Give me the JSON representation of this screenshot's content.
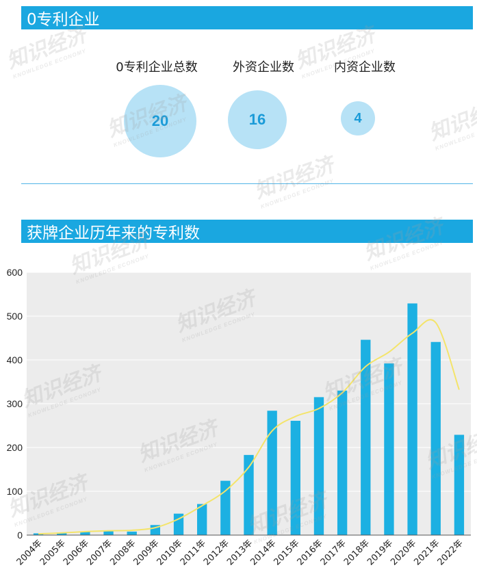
{
  "section1": {
    "title": "0专利企业",
    "labels": [
      "0专利企业总数",
      "外资企业数",
      "内资企业数"
    ],
    "values": [
      "20",
      "16",
      "4"
    ]
  },
  "section2": {
    "title": "获牌企业历年来的专利数"
  },
  "watermark": {
    "cn": "知识经济",
    "en": "KNOWLEDGE ECONOMY"
  },
  "colors": {
    "banner": "#1aa7e0",
    "bar": "#1cb0e2",
    "trend": "#f4e46a",
    "plot_bg": "#ececec",
    "bubble": "#b7e2f6"
  },
  "chart_data": {
    "type": "bar",
    "categories": [
      "2004年",
      "2005年",
      "2006年",
      "2007年",
      "2008年",
      "2009年",
      "2010年",
      "2011年",
      "2012年",
      "2013年",
      "2014年",
      "2015年",
      "2016年",
      "2017年",
      "2018年",
      "2019年",
      "2020年",
      "2021年",
      "2022年"
    ],
    "series": [
      {
        "values": [
          4,
          6,
          8,
          10,
          8,
          23,
          49,
          71,
          124,
          183,
          284,
          261,
          315,
          330,
          446,
          392,
          529,
          441,
          229
        ]
      },
      {
        "type": "line",
        "values": [
          3,
          5,
          8,
          10,
          11,
          17,
          37,
          67,
          101,
          155,
          238,
          271,
          289,
          325,
          385,
          418,
          461,
          485,
          332
        ]
      }
    ],
    "yticks": [
      0,
      100,
      200,
      300,
      400,
      500,
      600
    ],
    "ylim": [
      0,
      600
    ],
    "grid": true
  }
}
